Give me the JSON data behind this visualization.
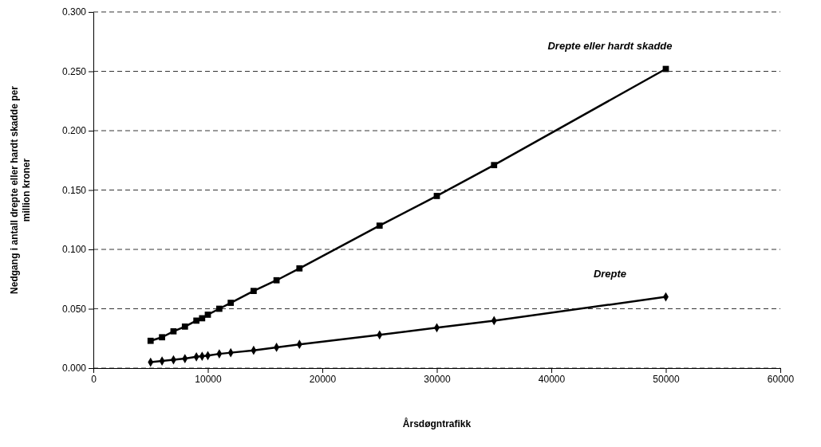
{
  "chart_data": {
    "type": "line",
    "xlabel": "Årsdøgntrafikk",
    "ylabel": "Nedgang i antall drepte eller hardt skadde per million kroner",
    "x": [
      5000,
      6000,
      7000,
      8000,
      9000,
      9500,
      10000,
      11000,
      12000,
      14000,
      16000,
      18000,
      25000,
      30000,
      35000,
      50000
    ],
    "series": [
      {
        "name": "Drepte eller hardt skadde",
        "color": "#000000",
        "marker": "square",
        "values": [
          0.023,
          0.026,
          0.031,
          0.035,
          0.04,
          0.042,
          0.045,
          0.05,
          0.055,
          0.065,
          0.074,
          0.084,
          0.12,
          0.145,
          0.171,
          0.252
        ]
      },
      {
        "name": "Drepte",
        "color": "#000000",
        "marker": "diamond",
        "values": [
          0.005,
          0.006,
          0.007,
          0.008,
          0.0095,
          0.01,
          0.0105,
          0.012,
          0.013,
          0.015,
          0.0175,
          0.02,
          0.028,
          0.034,
          0.04,
          0.06
        ]
      }
    ],
    "xlim": [
      0,
      60000
    ],
    "xticks": [
      0,
      10000,
      20000,
      30000,
      40000,
      50000,
      60000
    ],
    "ylim": [
      0,
      0.3
    ],
    "yticks": [
      {
        "value": 0,
        "label": "0.000"
      },
      {
        "value": 0.05,
        "label": "0.050"
      },
      {
        "value": 0.1,
        "label": "0.100"
      },
      {
        "value": 0.15,
        "label": "0.150"
      },
      {
        "value": 0.2,
        "label": "0.200"
      },
      {
        "value": 0.25,
        "label": "0.250"
      },
      {
        "value": 0.3,
        "label": "0.300"
      }
    ],
    "grid": "y",
    "line_style": "solid"
  }
}
